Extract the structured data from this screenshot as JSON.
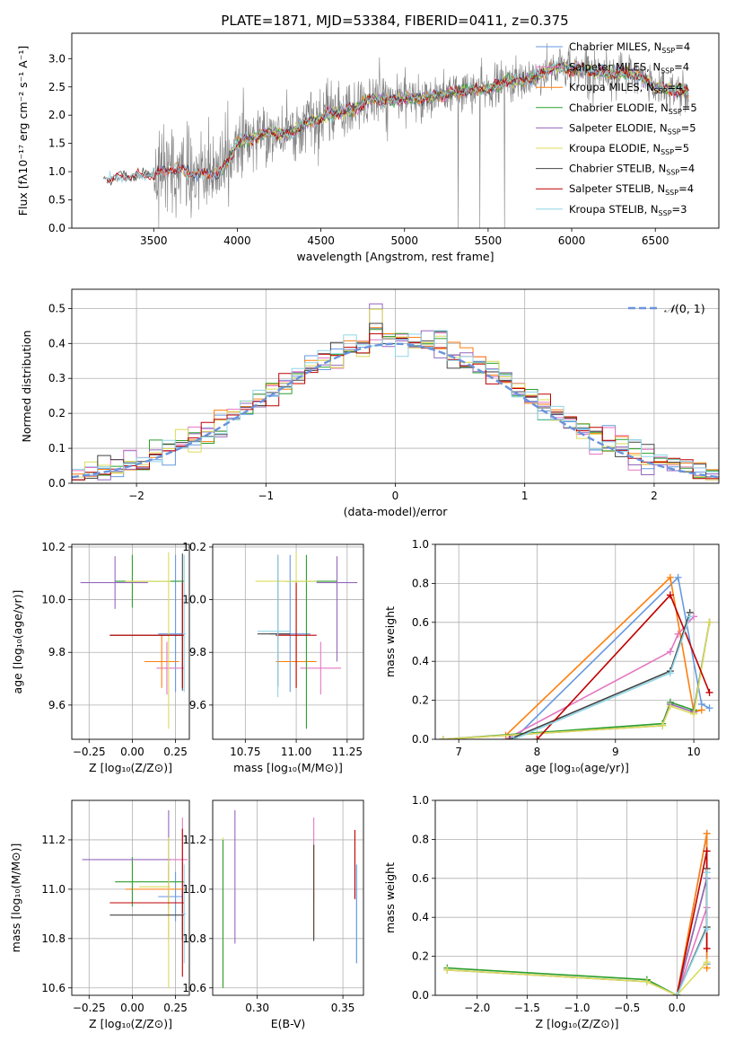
{
  "title": "PLATE=1871, MJD=53384, FIBERID=0411, z=0.375",
  "colors": {
    "Chabrier MILES": "#6699e0",
    "Salpeter MILES": "#e377c2",
    "Kroupa MILES": "#ff7f0e",
    "Chabrier ELODIE": "#2ca02c",
    "Salpeter ELODIE": "#9467bd",
    "Kroupa ELODIE": "#dbdb5a",
    "Chabrier STELIB": "#444444",
    "Salpeter STELIB": "#c00000",
    "Kroupa STELIB": "#8fd6e6",
    "data": "#808080",
    "gaussian": "#6a93dd"
  },
  "chart_data": [
    {
      "type": "line",
      "name": "spectrum",
      "xlabel": "wavelength [Angstrom, rest frame]",
      "ylabel": "Flux [fλ10⁻¹⁷ erg cm⁻² s⁻¹ A⁻¹]",
      "xlim": [
        3010,
        6880
      ],
      "ylim": [
        0,
        3.45
      ],
      "xticks": [
        3500,
        4000,
        4500,
        5000,
        5500,
        6000,
        6500
      ],
      "yticks": [
        0.0,
        0.5,
        1.0,
        1.5,
        2.0,
        2.5,
        3.0
      ],
      "legend_position": "upper-right",
      "legend": [
        {
          "model": "Chabrier MILES",
          "label": "Chabrier MILES, N",
          "nssp": "=4"
        },
        {
          "model": "Salpeter MILES",
          "label": "Salpeter MILES, N",
          "nssp": "=4"
        },
        {
          "model": "Kroupa MILES",
          "label": "Kroupa MILES, N",
          "nssp": "=4"
        },
        {
          "model": "Chabrier ELODIE",
          "label": "Chabrier ELODIE, N",
          "nssp": "=5"
        },
        {
          "model": "Salpeter ELODIE",
          "label": "Salpeter ELODIE, N",
          "nssp": "=5"
        },
        {
          "model": "Kroupa ELODIE",
          "label": "Kroupa ELODIE, N",
          "nssp": "=5"
        },
        {
          "model": "Chabrier STELIB",
          "label": "Chabrier STELIB, N",
          "nssp": "=4"
        },
        {
          "model": "Salpeter STELIB",
          "label": "Salpeter STELIB, N",
          "nssp": "=4"
        },
        {
          "model": "Kroupa STELIB",
          "label": "Kroupa STELIB, N",
          "nssp": "=3"
        }
      ],
      "ssp_subscript": "SSP",
      "continuum": [
        [
          3200,
          0.88
        ],
        [
          3300,
          0.9
        ],
        [
          3500,
          0.95
        ],
        [
          3600,
          1.05
        ],
        [
          3700,
          1.0
        ],
        [
          3800,
          0.95
        ],
        [
          3900,
          0.98
        ],
        [
          4000,
          1.5
        ],
        [
          4100,
          1.6
        ],
        [
          4200,
          1.7
        ],
        [
          4300,
          1.65
        ],
        [
          4400,
          1.85
        ],
        [
          4500,
          1.95
        ],
        [
          4600,
          2.05
        ],
        [
          4700,
          2.1
        ],
        [
          4800,
          2.3
        ],
        [
          4900,
          2.25
        ],
        [
          5000,
          2.3
        ],
        [
          5100,
          2.3
        ],
        [
          5200,
          2.35
        ],
        [
          5300,
          2.4
        ],
        [
          5400,
          2.45
        ],
        [
          5500,
          2.45
        ],
        [
          5600,
          2.6
        ],
        [
          5700,
          2.6
        ],
        [
          5800,
          2.7
        ],
        [
          5900,
          2.85
        ],
        [
          6000,
          2.82
        ],
        [
          6100,
          2.8
        ],
        [
          6200,
          2.75
        ],
        [
          6300,
          2.75
        ],
        [
          6400,
          2.7
        ],
        [
          6500,
          2.5
        ],
        [
          6600,
          2.45
        ],
        [
          6700,
          2.4
        ]
      ]
    },
    {
      "type": "bar",
      "name": "residual-histogram",
      "xlabel": "(data-model)/error",
      "ylabel": "Normed distribution",
      "xlim": [
        -2.5,
        2.5
      ],
      "ylim": [
        0,
        0.555
      ],
      "xticks": [
        -2,
        -1,
        0,
        1,
        2
      ],
      "xtick_labels": [
        "−2",
        "−1",
        "0",
        "1",
        "2"
      ],
      "yticks": [
        0.0,
        0.1,
        0.2,
        0.3,
        0.4,
        0.5
      ],
      "bin_width": 0.1,
      "legend_label": "(0, 1)",
      "legend_position": "upper-right",
      "gaussian": {
        "mu": 0,
        "sigma": 1
      }
    },
    {
      "type": "scatter",
      "name": "age-vs-metallicity",
      "xlabel": "Z [log₁₀(Z/Z⊙)]",
      "ylabel": "age [log₁₀(age/yr)]",
      "xlim": [
        -0.35,
        0.33
      ],
      "ylim": [
        9.47,
        10.21
      ],
      "xticks": [
        -0.25,
        0.0,
        0.25
      ],
      "xtick_labels": [
        "−0.25",
        "0.00",
        "0.25"
      ],
      "yticks": [
        9.6,
        9.8,
        10.0,
        10.2
      ],
      "points": [
        {
          "model": "Chabrier MILES",
          "x": 0.25,
          "xerr": [
            0.1,
            0.04
          ],
          "y": 9.87,
          "yerr": [
            0.22,
            0.3
          ]
        },
        {
          "model": "Salpeter MILES",
          "x": 0.2,
          "xerr": [
            0.06,
            0.1
          ],
          "y": 9.74,
          "yerr": [
            0.1,
            0.1
          ]
        },
        {
          "model": "Kroupa MILES",
          "x": 0.17,
          "xerr": [
            0.1,
            0.1
          ],
          "y": 9.765,
          "yerr": [
            0.1,
            0.1
          ]
        },
        {
          "model": "Chabrier ELODIE",
          "x": 0.0,
          "xerr": [
            0.1,
            0.3
          ],
          "y": 10.07,
          "yerr": [
            0.1,
            0.1
          ]
        },
        {
          "model": "Salpeter ELODIE",
          "x": -0.1,
          "xerr": [
            0.2,
            0.19
          ],
          "y": 10.065,
          "yerr": [
            0.1,
            0.1
          ]
        },
        {
          "model": "Kroupa ELODIE",
          "x": 0.21,
          "xerr": [
            0.25,
            0.01
          ],
          "y": 10.07,
          "yerr": [
            0.56,
            0.11
          ]
        },
        {
          "model": "Chabrier STELIB",
          "x": 0.29,
          "xerr": [
            0.42,
            0.01
          ],
          "y": 9.865,
          "yerr": [
            0.21,
            0.31
          ]
        },
        {
          "model": "Salpeter STELIB",
          "x": 0.29,
          "xerr": [
            0.42,
            0.01
          ],
          "y": 9.865,
          "yerr": [
            0.2,
            0.2
          ]
        },
        {
          "model": "Kroupa STELIB",
          "x": 0.3,
          "xerr": [
            0.01,
            0.01
          ],
          "y": 9.87,
          "yerr": [
            0.22,
            0.3
          ]
        }
      ]
    },
    {
      "type": "scatter",
      "name": "age-vs-mass",
      "xlabel": "mass [log₁₀(M/M⊙)]",
      "ylabel": "",
      "xlim": [
        10.59,
        11.33
      ],
      "ylim": [
        9.47,
        10.21
      ],
      "xticks": [
        10.75,
        11.0,
        11.25
      ],
      "xtick_labels": [
        "10.75",
        "11.00",
        "11.25"
      ],
      "yticks": [
        9.6,
        9.8,
        10.0,
        10.2
      ],
      "points": [
        {
          "model": "Chabrier MILES",
          "x": 10.97,
          "xerr": [
            0.1,
            0.1
          ],
          "y": 9.87,
          "yerr": [
            0.22,
            0.3
          ]
        },
        {
          "model": "Salpeter MILES",
          "x": 11.12,
          "xerr": [
            0.1,
            0.1
          ],
          "y": 9.74,
          "yerr": [
            0.1,
            0.1
          ]
        },
        {
          "model": "Kroupa MILES",
          "x": 11.0,
          "xerr": [
            0.1,
            0.1
          ],
          "y": 9.765,
          "yerr": [
            0.1,
            0.1
          ]
        },
        {
          "model": "Chabrier ELODIE",
          "x": 11.05,
          "xerr": [
            0.1,
            0.15
          ],
          "y": 10.07,
          "yerr": [
            0.56,
            0.1
          ]
        },
        {
          "model": "Salpeter ELODIE",
          "x": 11.2,
          "xerr": [
            0.1,
            0.1
          ],
          "y": 10.065,
          "yerr": [
            0.3,
            0.1
          ]
        },
        {
          "model": "Kroupa ELODIE",
          "x": 11.0,
          "xerr": [
            0.2,
            0.1
          ],
          "y": 10.07,
          "yerr": [
            0.2,
            0.11
          ]
        },
        {
          "model": "Chabrier STELIB",
          "x": 10.91,
          "xerr": [
            0.1,
            0.06
          ],
          "y": 9.87,
          "yerr": [
            0.2,
            0.3
          ]
        },
        {
          "model": "Salpeter STELIB",
          "x": 11.0,
          "xerr": [
            0.1,
            0.1
          ],
          "y": 9.865,
          "yerr": [
            0.2,
            0.2
          ]
        },
        {
          "model": "Kroupa STELIB",
          "x": 10.91,
          "xerr": [
            0.1,
            0.06
          ],
          "y": 9.88,
          "yerr": [
            0.25,
            0.29
          ]
        }
      ]
    },
    {
      "type": "line",
      "name": "mass-weight-vs-age",
      "xlabel": "age [log₁₀(age/yr)]",
      "ylabel": "mass weight",
      "xlim": [
        6.7,
        10.32
      ],
      "ylim": [
        0,
        1
      ],
      "xticks": [
        7,
        8,
        9,
        10
      ],
      "yticks": [
        0.0,
        0.2,
        0.4,
        0.6,
        0.8,
        1.0
      ],
      "grid": true,
      "series": [
        {
          "model": "Chabrier MILES",
          "x": [
            7.7,
            9.8,
            10.1,
            10.2
          ],
          "y": [
            0.0,
            0.83,
            0.18,
            0.16
          ]
        },
        {
          "model": "Salpeter MILES",
          "x": [
            7.6,
            9.7,
            9.8,
            10.0
          ],
          "y": [
            0.0,
            0.45,
            0.54,
            0.63
          ]
        },
        {
          "model": "Kroupa MILES",
          "x": [
            7.6,
            9.7,
            10.0,
            10.1
          ],
          "y": [
            0.02,
            0.83,
            0.14,
            0.15
          ]
        },
        {
          "model": "Chabrier ELODIE",
          "x": [
            6.8,
            9.6,
            9.7,
            10.0,
            10.2
          ],
          "y": [
            0.0,
            0.08,
            0.19,
            0.15,
            0.6
          ]
        },
        {
          "model": "Salpeter ELODIE",
          "x": [
            6.8,
            9.6,
            9.7,
            10.0,
            10.2
          ],
          "y": [
            0.0,
            0.07,
            0.18,
            0.14,
            0.6
          ]
        },
        {
          "model": "Kroupa ELODIE",
          "x": [
            6.8,
            9.6,
            9.7,
            10.0,
            10.2
          ],
          "y": [
            0.0,
            0.07,
            0.17,
            0.13,
            0.6
          ]
        },
        {
          "model": "Chabrier STELIB",
          "x": [
            7.65,
            9.7,
            9.95
          ],
          "y": [
            0.0,
            0.35,
            0.65
          ]
        },
        {
          "model": "Salpeter STELIB",
          "x": [
            8.0,
            9.7,
            10.2
          ],
          "y": [
            0.0,
            0.74,
            0.24
          ]
        },
        {
          "model": "Kroupa STELIB",
          "x": [
            7.7,
            9.7,
            9.95
          ],
          "y": [
            0.0,
            0.34,
            0.63
          ]
        }
      ]
    },
    {
      "type": "scatter",
      "name": "mass-vs-metallicity",
      "xlabel": "Z [log₁₀(Z/Z⊙)]",
      "ylabel": "mass [log₁₀(M/M⊙)]",
      "xlim": [
        -0.35,
        0.33
      ],
      "ylim": [
        10.57,
        11.36
      ],
      "xticks": [
        -0.25,
        0.0,
        0.25
      ],
      "xtick_labels": [
        "−0.25",
        "0.00",
        "0.25"
      ],
      "yticks": [
        10.6,
        10.8,
        11.0,
        11.2
      ],
      "points": [
        {
          "model": "Chabrier MILES",
          "x": 0.25,
          "xerr": [
            0.1,
            0.04
          ],
          "y": 10.97,
          "yerr": [
            0.1,
            0.1
          ]
        },
        {
          "model": "Salpeter MILES",
          "x": 0.29,
          "xerr": [
            0.1,
            0.03
          ],
          "y": 11.12,
          "yerr": [
            0.17,
            0.17
          ]
        },
        {
          "model": "Kroupa MILES",
          "x": 0.21,
          "xerr": [
            0.25,
            0.1
          ],
          "y": 11.0,
          "yerr": [
            0.2,
            0.1
          ]
        },
        {
          "model": "Chabrier ELODIE",
          "x": 0.0,
          "xerr": [
            0.1,
            0.3
          ],
          "y": 11.03,
          "yerr": [
            0.1,
            0.1
          ]
        },
        {
          "model": "Salpeter ELODIE",
          "x": 0.21,
          "xerr": [
            0.5,
            0.01
          ],
          "y": 11.12,
          "yerr": [
            0.2,
            0.2
          ]
        },
        {
          "model": "Kroupa ELODIE",
          "x": 0.21,
          "xerr": [
            0.17,
            0.01
          ],
          "y": 11.01,
          "yerr": [
            0.41,
            0.2
          ]
        },
        {
          "model": "Chabrier STELIB",
          "x": 0.29,
          "xerr": [
            0.42,
            0.01
          ],
          "y": 10.895,
          "yerr": [
            0.1,
            0.1
          ]
        },
        {
          "model": "Salpeter STELIB",
          "x": 0.29,
          "xerr": [
            0.42,
            0.01
          ],
          "y": 10.945,
          "yerr": [
            0.3,
            0.3
          ]
        },
        {
          "model": "Kroupa STELIB",
          "x": 0.3,
          "xerr": [
            0.01,
            0.01
          ],
          "y": 10.9,
          "yerr": [
            0.2,
            0.2
          ]
        }
      ]
    },
    {
      "type": "scatter",
      "name": "mass-vs-extinction",
      "xlabel": "E(B-V)",
      "ylabel": "",
      "xlim": [
        0.274,
        0.362
      ],
      "ylim": [
        10.57,
        11.36
      ],
      "xticks": [
        0.3,
        0.35
      ],
      "xtick_labels": [
        "0.30",
        "0.35"
      ],
      "yticks": [
        10.6,
        10.8,
        11.0,
        11.2
      ],
      "points": [
        {
          "model": "Kroupa ELODIE",
          "x": 0.28,
          "y": 11.01,
          "yerr": [
            0.41,
            0.2
          ]
        },
        {
          "model": "Chabrier ELODIE",
          "x": 0.28,
          "y": 11.0,
          "yerr": [
            0.4,
            0.2
          ]
        },
        {
          "model": "Salpeter ELODIE",
          "x": 0.287,
          "y": 11.05,
          "yerr": [
            0.27,
            0.27
          ]
        },
        {
          "model": "Salpeter MILES",
          "x": 0.333,
          "y": 11.12,
          "yerr": [
            0.17,
            0.17
          ]
        },
        {
          "model": "Kroupa MILES",
          "x": 0.333,
          "y": 10.98,
          "yerr": [
            0.18,
            0.2
          ]
        },
        {
          "model": "Chabrier STELIB",
          "x": 0.333,
          "y": 10.98,
          "yerr": [
            0.19,
            0.2
          ]
        },
        {
          "model": "Salpeter STELIB",
          "x": 0.357,
          "y": 11.1,
          "yerr": [
            0.14,
            0.14
          ]
        },
        {
          "model": "Kroupa STELIB",
          "x": 0.358,
          "y": 10.9,
          "yerr": [
            0.2,
            0.2
          ]
        },
        {
          "model": "Chabrier MILES",
          "x": 0.358,
          "y": 10.9,
          "yerr": [
            0.2,
            0.2
          ]
        }
      ]
    },
    {
      "type": "line",
      "name": "mass-weight-vs-metallicity",
      "xlabel": "Z [log₁₀(Z/Z⊙)]",
      "ylabel": "mass weight",
      "xlim": [
        -2.42,
        0.42
      ],
      "ylim": [
        0,
        1
      ],
      "xticks": [
        -2.0,
        -1.5,
        -1.0,
        -0.5,
        0.0
      ],
      "xtick_labels": [
        "−2.0",
        "−1.5",
        "−1.0",
        "−0.5",
        "0.0"
      ],
      "yticks": [
        0.0,
        0.2,
        0.4,
        0.6,
        0.8,
        1.0
      ],
      "grid": true,
      "series": [
        {
          "model": "Chabrier MILES",
          "x": [
            0.0,
            0.3,
            0.3
          ],
          "y": [
            0.0,
            0.83,
            0.16
          ]
        },
        {
          "model": "Salpeter MILES",
          "x": [
            0.0,
            0.3,
            0.3
          ],
          "y": [
            0.0,
            0.45,
            0.63
          ]
        },
        {
          "model": "Kroupa MILES",
          "x": [
            0.0,
            0.3,
            0.3
          ],
          "y": [
            0.0,
            0.83,
            0.14
          ]
        },
        {
          "model": "Chabrier ELODIE",
          "x": [
            -2.3,
            -0.3,
            0.0,
            0.3
          ],
          "y": [
            0.14,
            0.08,
            0.0,
            0.6
          ]
        },
        {
          "model": "Salpeter ELODIE",
          "x": [
            -2.3,
            -0.3,
            0.0,
            0.3
          ],
          "y": [
            0.13,
            0.07,
            0.0,
            0.6
          ]
        },
        {
          "model": "Kroupa ELODIE",
          "x": [
            -2.3,
            -0.3,
            0.0,
            0.3
          ],
          "y": [
            0.13,
            0.07,
            0.0,
            0.17
          ]
        },
        {
          "model": "Chabrier STELIB",
          "x": [
            0.0,
            0.3,
            0.3
          ],
          "y": [
            0.0,
            0.35,
            0.65
          ]
        },
        {
          "model": "Salpeter STELIB",
          "x": [
            0.0,
            0.3,
            0.3
          ],
          "y": [
            0.0,
            0.74,
            0.24
          ]
        },
        {
          "model": "Kroupa STELIB",
          "x": [
            0.0,
            0.3,
            0.3
          ],
          "y": [
            0.0,
            0.34,
            0.63
          ]
        }
      ]
    }
  ]
}
